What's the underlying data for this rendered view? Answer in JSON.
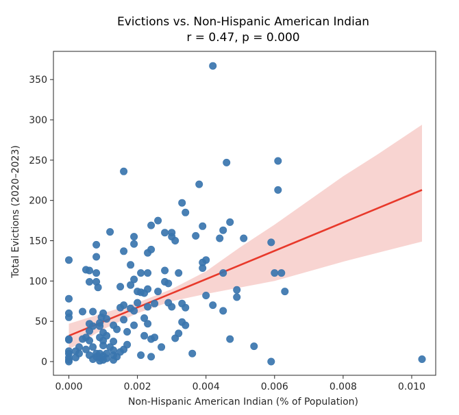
{
  "chart_data": {
    "type": "scatter",
    "title": "Evictions vs. Non-Hispanic American Indian",
    "subtitle": "r = 0.47, p = 0.000",
    "xlabel": "Non-Hispanic American Indian (% of Population)",
    "ylabel": "Total Evictions (2020–2023)",
    "xlim": [
      -0.00045,
      0.0107
    ],
    "ylim": [
      -17,
      385
    ],
    "xticks": [
      0.0,
      0.002,
      0.004,
      0.006,
      0.008,
      0.01
    ],
    "xtick_labels": [
      "0.000",
      "0.002",
      "0.004",
      "0.006",
      "0.008",
      "0.010"
    ],
    "yticks": [
      0,
      50,
      100,
      150,
      200,
      250,
      300,
      350
    ],
    "ytick_labels": [
      "0",
      "50",
      "100",
      "150",
      "200",
      "250",
      "300",
      "350"
    ],
    "grid": false,
    "colors": {
      "points": "#3a75ae",
      "regression_line": "#e8392b",
      "confidence_band": "#f6c6c2"
    },
    "regression": {
      "x": [
        0.0,
        0.0103
      ],
      "y": [
        32,
        213
      ]
    },
    "confidence_band": {
      "x": [
        0.0,
        0.001,
        0.002,
        0.003,
        0.004,
        0.005,
        0.006,
        0.007,
        0.008,
        0.009,
        0.0103
      ],
      "lower": [
        15,
        40,
        60,
        75,
        84,
        92,
        100,
        112,
        124,
        135,
        149
      ],
      "upper": [
        47,
        60,
        73,
        90,
        112,
        142,
        170,
        200,
        230,
        257,
        294
      ]
    },
    "points": [
      {
        "x": 0.0,
        "y": 0
      },
      {
        "x": 0.0,
        "y": 2
      },
      {
        "x": 0.0,
        "y": 5
      },
      {
        "x": 0.0,
        "y": 10
      },
      {
        "x": 0.0,
        "y": 13
      },
      {
        "x": 0.0,
        "y": 27
      },
      {
        "x": 0.0,
        "y": 28
      },
      {
        "x": 0.0,
        "y": 55
      },
      {
        "x": 0.0,
        "y": 60
      },
      {
        "x": 0.0,
        "y": 78
      },
      {
        "x": 0.0,
        "y": 126
      },
      {
        "x": 0.0002,
        "y": 5
      },
      {
        "x": 0.0002,
        "y": 13
      },
      {
        "x": 0.0003,
        "y": 10
      },
      {
        "x": 0.0003,
        "y": 18
      },
      {
        "x": 0.0004,
        "y": 28
      },
      {
        "x": 0.0004,
        "y": 62
      },
      {
        "x": 0.0005,
        "y": 15
      },
      {
        "x": 0.0005,
        "y": 30
      },
      {
        "x": 0.0005,
        "y": 114
      },
      {
        "x": 0.0006,
        "y": 8
      },
      {
        "x": 0.0006,
        "y": 26
      },
      {
        "x": 0.0006,
        "y": 38
      },
      {
        "x": 0.0006,
        "y": 47
      },
      {
        "x": 0.0006,
        "y": 99
      },
      {
        "x": 0.0006,
        "y": 113
      },
      {
        "x": 0.0007,
        "y": 3
      },
      {
        "x": 0.0007,
        "y": 18
      },
      {
        "x": 0.0007,
        "y": 44
      },
      {
        "x": 0.0007,
        "y": 62
      },
      {
        "x": 0.0008,
        "y": 6
      },
      {
        "x": 0.0008,
        "y": 10
      },
      {
        "x": 0.0008,
        "y": 99
      },
      {
        "x": 0.0008,
        "y": 110
      },
      {
        "x": 0.0008,
        "y": 130
      },
      {
        "x": 0.0008,
        "y": 145
      },
      {
        "x": 0.00085,
        "y": 92
      },
      {
        "x": 0.0009,
        "y": 1
      },
      {
        "x": 0.0009,
        "y": 5
      },
      {
        "x": 0.0009,
        "y": 10
      },
      {
        "x": 0.0009,
        "y": 30
      },
      {
        "x": 0.0009,
        "y": 44
      },
      {
        "x": 0.0009,
        "y": 48
      },
      {
        "x": 0.00095,
        "y": 55
      },
      {
        "x": 0.001,
        "y": 2
      },
      {
        "x": 0.001,
        "y": 7
      },
      {
        "x": 0.001,
        "y": 20
      },
      {
        "x": 0.001,
        "y": 26
      },
      {
        "x": 0.001,
        "y": 36
      },
      {
        "x": 0.001,
        "y": 60
      },
      {
        "x": 0.0011,
        "y": 4
      },
      {
        "x": 0.0011,
        "y": 10
      },
      {
        "x": 0.0011,
        "y": 32
      },
      {
        "x": 0.0011,
        "y": 53
      },
      {
        "x": 0.0012,
        "y": 161
      },
      {
        "x": 0.0012,
        "y": 18
      },
      {
        "x": 0.0013,
        "y": 2
      },
      {
        "x": 0.0013,
        "y": 8
      },
      {
        "x": 0.0013,
        "y": 14
      },
      {
        "x": 0.0013,
        "y": 25
      },
      {
        "x": 0.0013,
        "y": 45
      },
      {
        "x": 0.0014,
        "y": 40
      },
      {
        "x": 0.0014,
        "y": 6
      },
      {
        "x": 0.0015,
        "y": 93
      },
      {
        "x": 0.0015,
        "y": 67
      },
      {
        "x": 0.0015,
        "y": 12
      },
      {
        "x": 0.0016,
        "y": 236
      },
      {
        "x": 0.0016,
        "y": 137
      },
      {
        "x": 0.0016,
        "y": 70
      },
      {
        "x": 0.0016,
        "y": 52
      },
      {
        "x": 0.0016,
        "y": 15
      },
      {
        "x": 0.0017,
        "y": 37
      },
      {
        "x": 0.0017,
        "y": 21
      },
      {
        "x": 0.0018,
        "y": 120
      },
      {
        "x": 0.0018,
        "y": 95
      },
      {
        "x": 0.0018,
        "y": 66
      },
      {
        "x": 0.0019,
        "y": 155
      },
      {
        "x": 0.0019,
        "y": 146
      },
      {
        "x": 0.0019,
        "y": 102
      },
      {
        "x": 0.0019,
        "y": 63
      },
      {
        "x": 0.0019,
        "y": 45
      },
      {
        "x": 0.002,
        "y": 87
      },
      {
        "x": 0.002,
        "y": 73
      },
      {
        "x": 0.0021,
        "y": 86
      },
      {
        "x": 0.0021,
        "y": 110
      },
      {
        "x": 0.0021,
        "y": 8
      },
      {
        "x": 0.0022,
        "y": 32
      },
      {
        "x": 0.0022,
        "y": 54
      },
      {
        "x": 0.0022,
        "y": 85
      },
      {
        "x": 0.0023,
        "y": 90
      },
      {
        "x": 0.0023,
        "y": 135
      },
      {
        "x": 0.0023,
        "y": 110
      },
      {
        "x": 0.0023,
        "y": 68
      },
      {
        "x": 0.0023,
        "y": 47
      },
      {
        "x": 0.0024,
        "y": 169
      },
      {
        "x": 0.0024,
        "y": 139
      },
      {
        "x": 0.0024,
        "y": 28
      },
      {
        "x": 0.0024,
        "y": 6
      },
      {
        "x": 0.0025,
        "y": 72
      },
      {
        "x": 0.0025,
        "y": 30
      },
      {
        "x": 0.0026,
        "y": 175
      },
      {
        "x": 0.0026,
        "y": 87
      },
      {
        "x": 0.0027,
        "y": 18
      },
      {
        "x": 0.0028,
        "y": 160
      },
      {
        "x": 0.0028,
        "y": 113
      },
      {
        "x": 0.0028,
        "y": 99
      },
      {
        "x": 0.0029,
        "y": 97
      },
      {
        "x": 0.0029,
        "y": 73
      },
      {
        "x": 0.003,
        "y": 160
      },
      {
        "x": 0.003,
        "y": 155
      },
      {
        "x": 0.003,
        "y": 68
      },
      {
        "x": 0.0031,
        "y": 150
      },
      {
        "x": 0.0031,
        "y": 29
      },
      {
        "x": 0.0032,
        "y": 35
      },
      {
        "x": 0.0032,
        "y": 110
      },
      {
        "x": 0.0033,
        "y": 197
      },
      {
        "x": 0.0033,
        "y": 72
      },
      {
        "x": 0.0033,
        "y": 49
      },
      {
        "x": 0.0034,
        "y": 185
      },
      {
        "x": 0.0034,
        "y": 67
      },
      {
        "x": 0.0034,
        "y": 45
      },
      {
        "x": 0.0036,
        "y": 10
      },
      {
        "x": 0.0037,
        "y": 156
      },
      {
        "x": 0.0038,
        "y": 220
      },
      {
        "x": 0.0039,
        "y": 168
      },
      {
        "x": 0.0039,
        "y": 123
      },
      {
        "x": 0.0039,
        "y": 116
      },
      {
        "x": 0.004,
        "y": 126
      },
      {
        "x": 0.004,
        "y": 82
      },
      {
        "x": 0.0042,
        "y": 367
      },
      {
        "x": 0.0042,
        "y": 70
      },
      {
        "x": 0.0044,
        "y": 153
      },
      {
        "x": 0.0045,
        "y": 63
      },
      {
        "x": 0.0045,
        "y": 110
      },
      {
        "x": 0.0045,
        "y": 163
      },
      {
        "x": 0.0046,
        "y": 247
      },
      {
        "x": 0.0047,
        "y": 173
      },
      {
        "x": 0.0047,
        "y": 28
      },
      {
        "x": 0.0049,
        "y": 89
      },
      {
        "x": 0.0049,
        "y": 80
      },
      {
        "x": 0.0051,
        "y": 153
      },
      {
        "x": 0.0054,
        "y": 19
      },
      {
        "x": 0.0059,
        "y": 148
      },
      {
        "x": 0.0059,
        "y": 0
      },
      {
        "x": 0.006,
        "y": 110
      },
      {
        "x": 0.0061,
        "y": 249
      },
      {
        "x": 0.0061,
        "y": 213
      },
      {
        "x": 0.0062,
        "y": 110
      },
      {
        "x": 0.0063,
        "y": 87
      },
      {
        "x": 0.0103,
        "y": 3
      }
    ]
  }
}
